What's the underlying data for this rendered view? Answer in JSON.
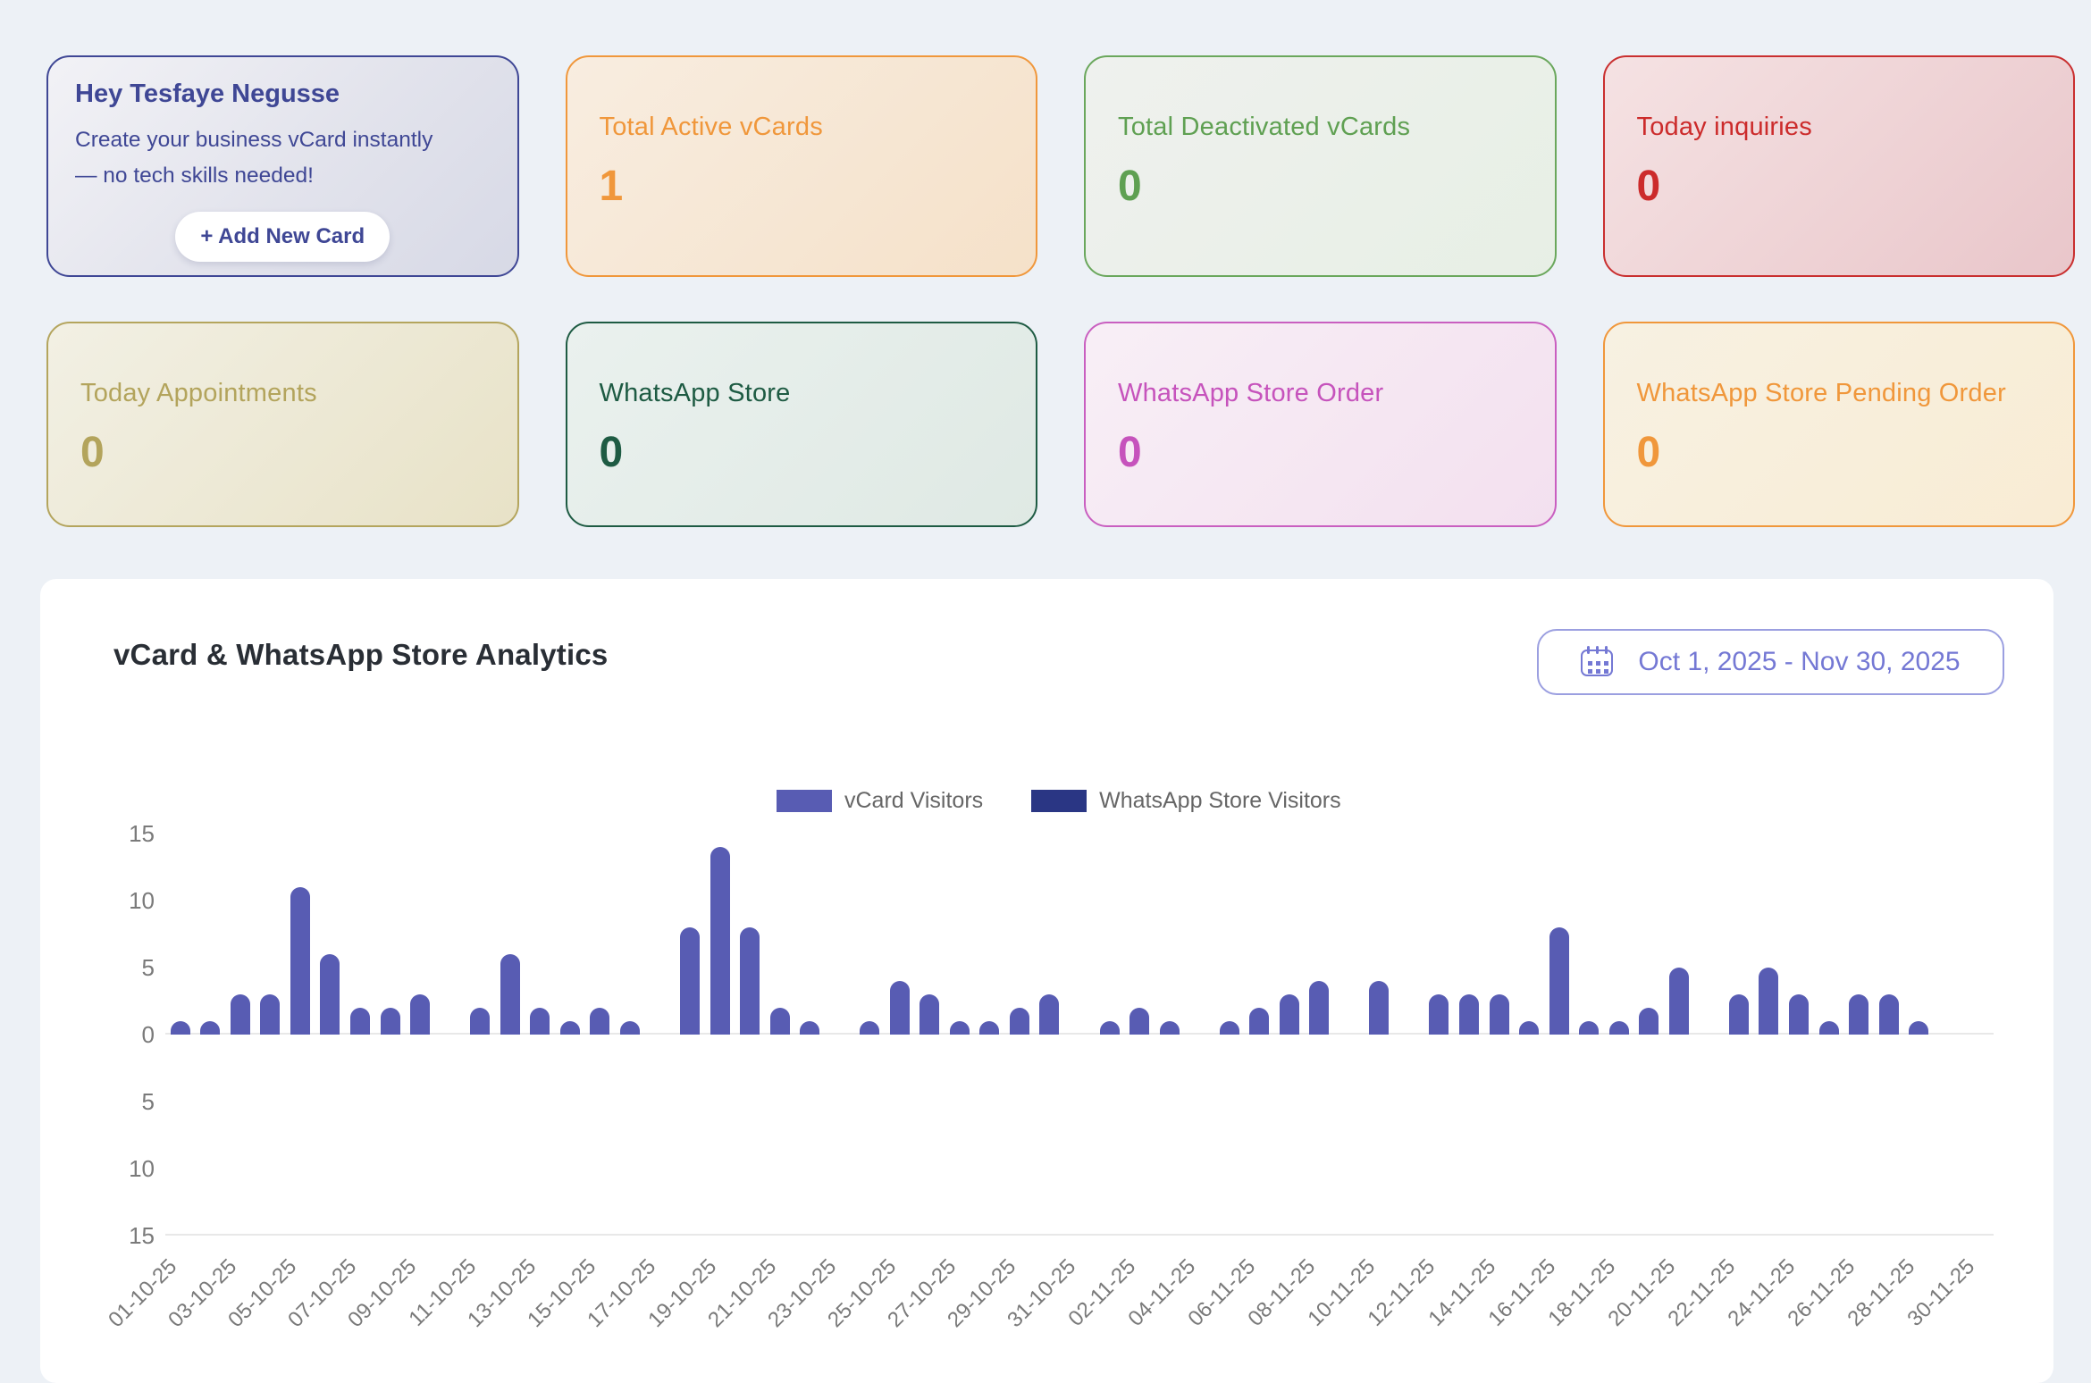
{
  "theme": {
    "page_bg": "#edf1f6",
    "panel_bg": "#ffffff",
    "axis_text": "#7a7a7a",
    "legend_text": "#666666"
  },
  "greeting": {
    "title": "Hey Tesfaye Negusse",
    "line1": "Create your business vCard instantly",
    "line2": "— no tech skills needed!",
    "button_label": "+ Add New Card",
    "accent": "#3f4795"
  },
  "cards": [
    {
      "label": "Total Active vCards",
      "value": "1",
      "color": "#F0973B",
      "border": "#F0973B",
      "bg": [
        "#f8ede0",
        "#f5e1c9"
      ]
    },
    {
      "label": "Total Deactivated vCards",
      "value": "0",
      "color": "#5FA052",
      "border": "#6aa75c",
      "bg": [
        "#eff1ee",
        "#e7efe5"
      ]
    },
    {
      "label": "Today inquiries",
      "value": "0",
      "color": "#CC2B2B",
      "border": "#c92f2f",
      "bg": [
        "#f5e2e3",
        "#e9c6ca"
      ]
    },
    {
      "label": "Today Appointments",
      "value": "0",
      "color": "#B3A45C",
      "border": "#b4a55d",
      "bg": [
        "#f2f0e4",
        "#e8e2c7"
      ]
    },
    {
      "label": "WhatsApp Store",
      "value": "0",
      "color": "#1E5B43",
      "border": "#1e5b43",
      "bg": [
        "#eaf1ee",
        "#dfe9e4"
      ]
    },
    {
      "label": "WhatsApp Store Order",
      "value": "0",
      "color": "#C653BC",
      "border": "#c95fc0",
      "bg": [
        "#f8eff6",
        "#f3e0ef"
      ]
    },
    {
      "label": "WhatsApp Store Pending Order",
      "value": "0",
      "color": "#F0973B",
      "border": "#F0973B",
      "bg": [
        "#f7f1e2",
        "#f9ecd4"
      ]
    }
  ],
  "analytics": {
    "title": "vCard & WhatsApp Store Analytics",
    "date_range": "Oct 1, 2025 - Nov 30, 2025",
    "picker_color": "#7478d4"
  },
  "chart_data": {
    "type": "bar",
    "title": "vCard & WhatsApp Store Analytics",
    "x": [
      "01-10-25",
      "02-10-25",
      "03-10-25",
      "04-10-25",
      "05-10-25",
      "06-10-25",
      "07-10-25",
      "08-10-25",
      "09-10-25",
      "10-10-25",
      "11-10-25",
      "12-10-25",
      "13-10-25",
      "14-10-25",
      "15-10-25",
      "16-10-25",
      "17-10-25",
      "18-10-25",
      "19-10-25",
      "20-10-25",
      "21-10-25",
      "22-10-25",
      "23-10-25",
      "24-10-25",
      "25-10-25",
      "26-10-25",
      "27-10-25",
      "28-10-25",
      "29-10-25",
      "30-10-25",
      "31-10-25",
      "01-11-25",
      "02-11-25",
      "03-11-25",
      "04-11-25",
      "05-11-25",
      "06-11-25",
      "07-11-25",
      "08-11-25",
      "09-11-25",
      "10-11-25",
      "11-11-25",
      "12-11-25",
      "13-11-25",
      "14-11-25",
      "15-11-25",
      "16-11-25",
      "17-11-25",
      "18-11-25",
      "19-11-25",
      "20-11-25",
      "21-11-25",
      "22-11-25",
      "23-11-25",
      "24-11-25",
      "25-11-25",
      "26-11-25",
      "27-11-25",
      "28-11-25",
      "29-11-25",
      "30-11-25"
    ],
    "x_label_every": 2,
    "series": [
      {
        "name": "vCard Visitors",
        "color": "#585CB3",
        "values": [
          1,
          1,
          3,
          3,
          11,
          6,
          2,
          2,
          3,
          0,
          2,
          6,
          2,
          1,
          2,
          1,
          0,
          8,
          14,
          8,
          2,
          1,
          0,
          1,
          4,
          3,
          1,
          1,
          2,
          3,
          0,
          1,
          2,
          1,
          0,
          1,
          2,
          3,
          4,
          0,
          4,
          0,
          3,
          3,
          3,
          1,
          8,
          1,
          1,
          2,
          5,
          0,
          3,
          5,
          3,
          1,
          3,
          3,
          1,
          0,
          0
        ]
      },
      {
        "name": "WhatsApp Store Visitors",
        "color": "#2A3684",
        "values": [
          0,
          0,
          0,
          0,
          0,
          0,
          0,
          0,
          0,
          0,
          0,
          0,
          0,
          0,
          0,
          0,
          0,
          0,
          0,
          0,
          0,
          0,
          0,
          0,
          0,
          0,
          0,
          0,
          0,
          0,
          0,
          0,
          0,
          0,
          0,
          0,
          0,
          0,
          0,
          0,
          0,
          0,
          0,
          0,
          0,
          0,
          0,
          0,
          0,
          0,
          0,
          0,
          0,
          0,
          0,
          0,
          0,
          0,
          0,
          0,
          0
        ]
      }
    ],
    "y_ticks": [
      "15",
      "10",
      "5",
      "0",
      "5",
      "10",
      "15"
    ],
    "ylim": [
      -15,
      15
    ],
    "grid": "zero line and bottom line only",
    "legend_position": "top-center",
    "mirrored": true
  }
}
